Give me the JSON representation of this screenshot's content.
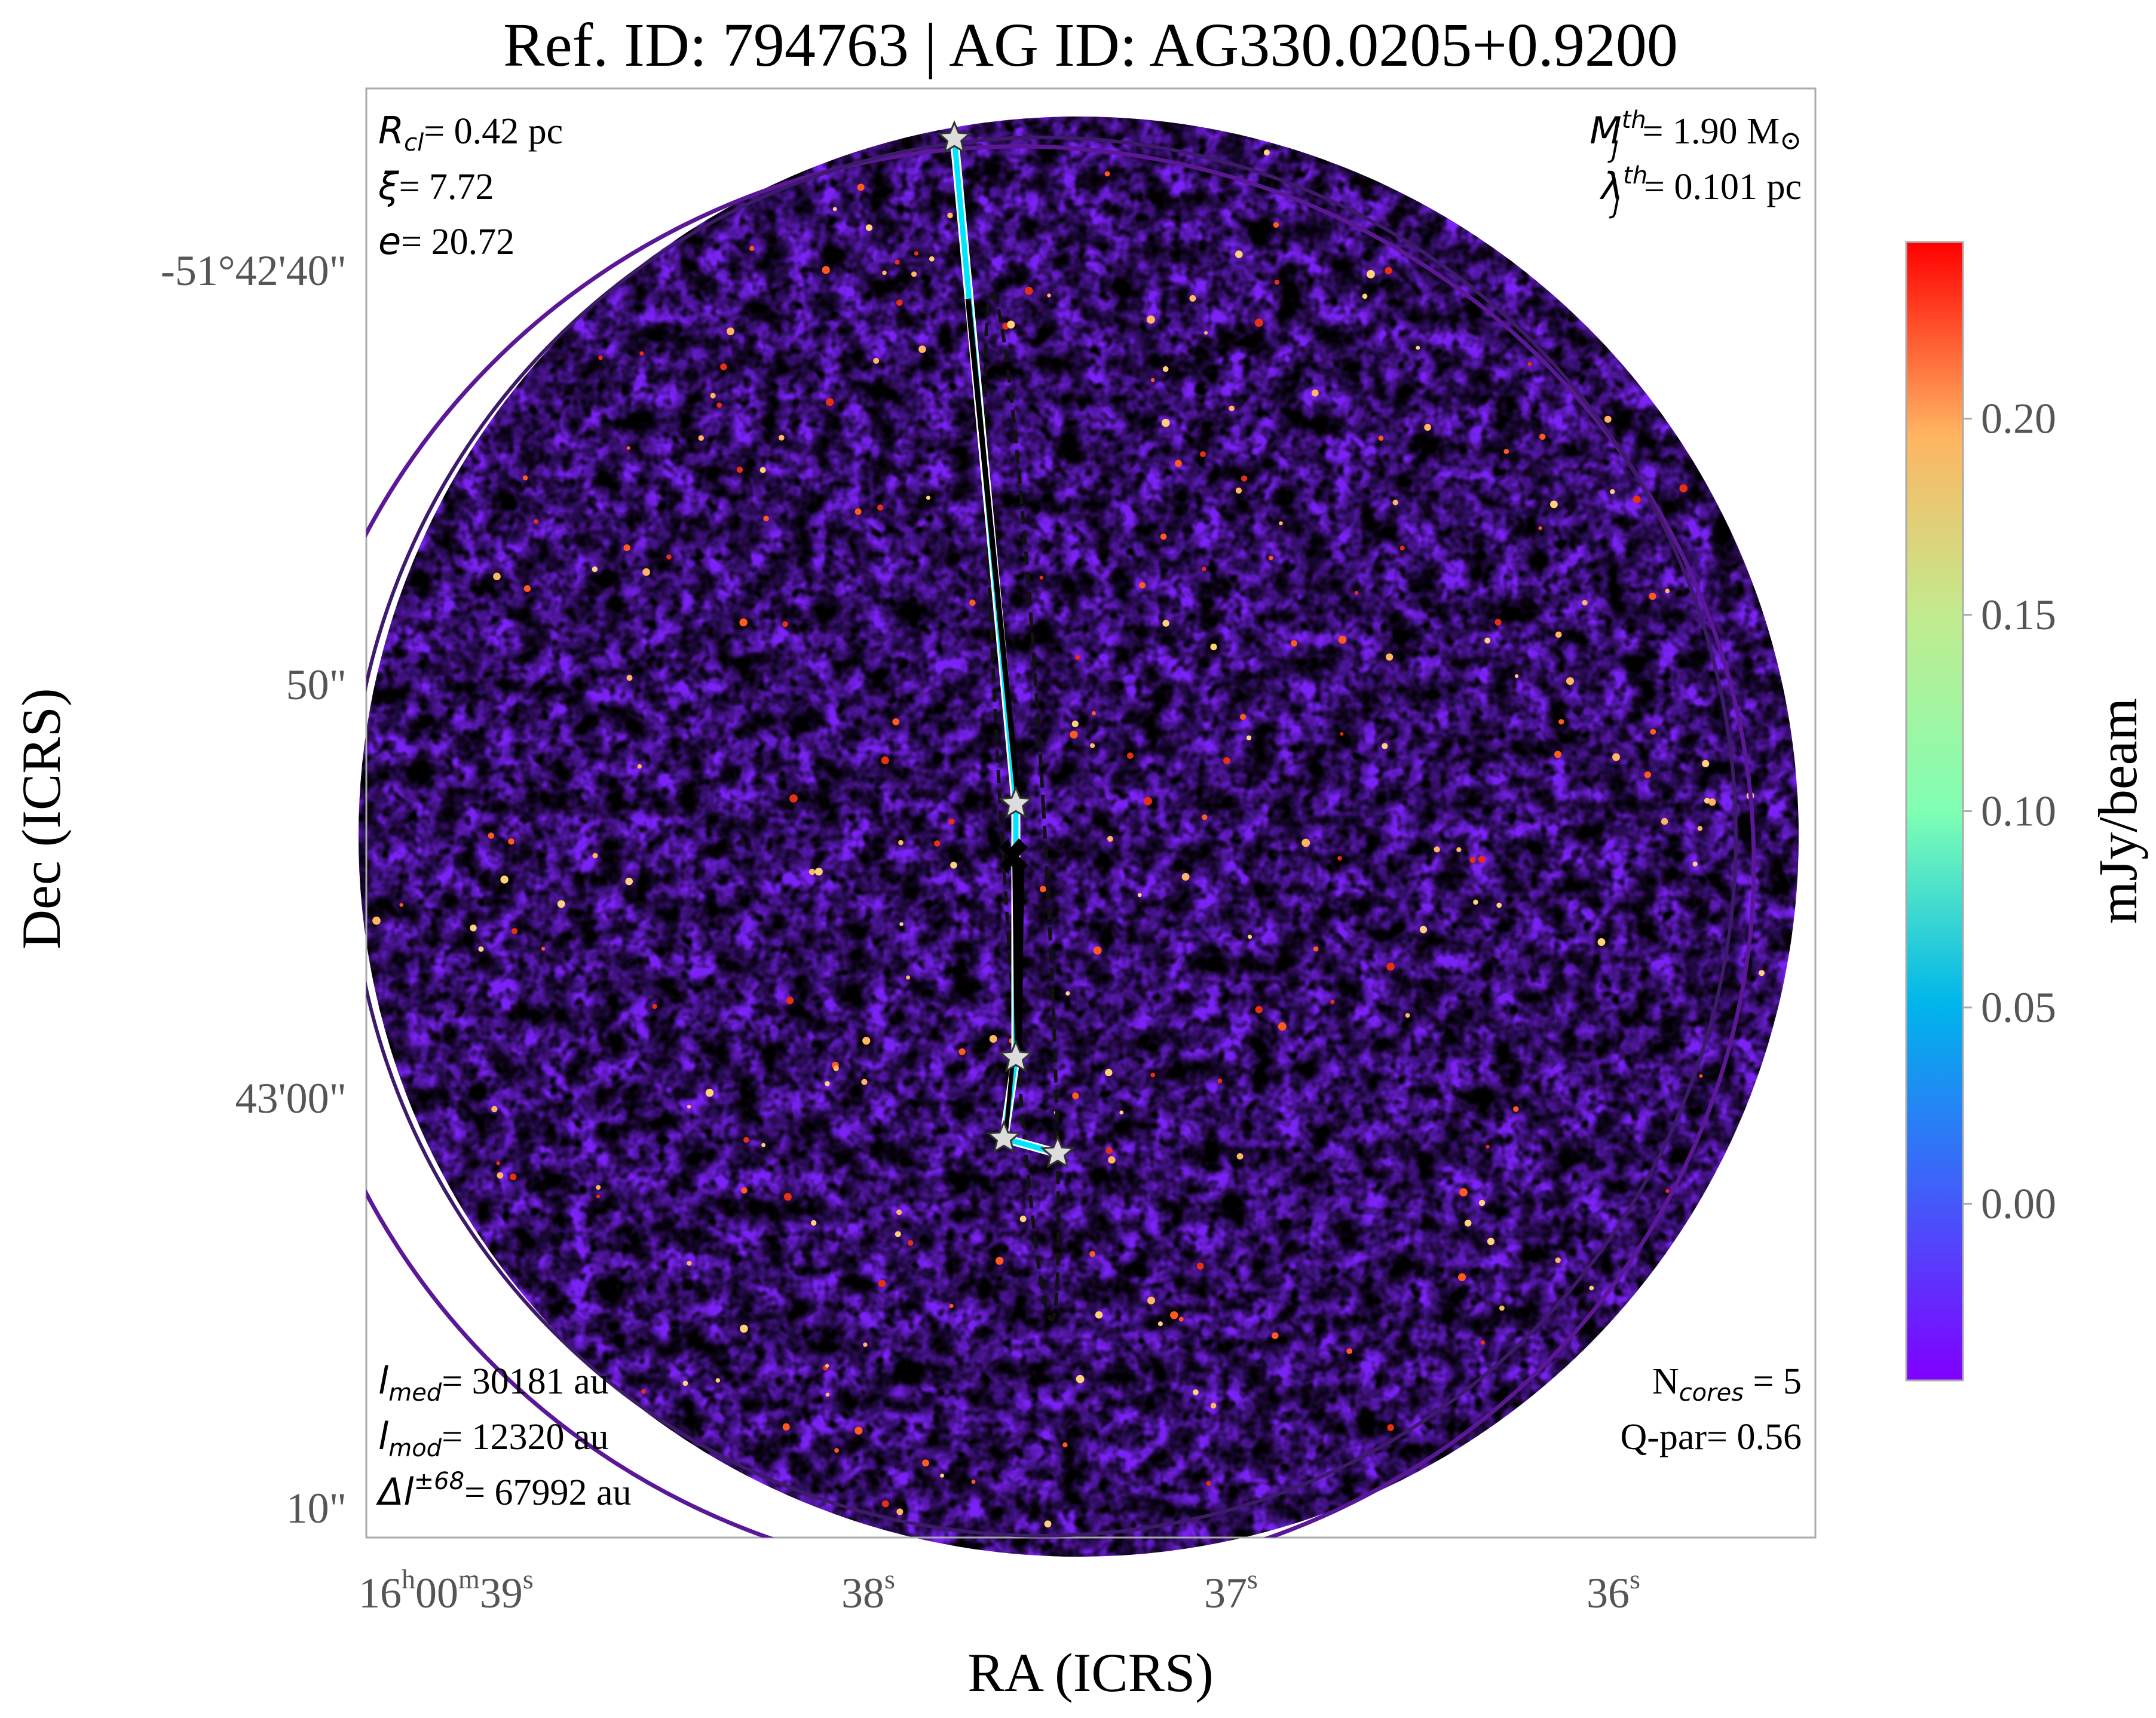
{
  "chart_data": {
    "type": "heatmap",
    "title": "Ref. ID: 794763 | AG ID: AG330.0205+0.9200",
    "xlabel": "RA (ICRS)",
    "ylabel": "Dec (ICRS)",
    "x_ticks": [
      {
        "pre": "16",
        "h": "h",
        "mid": "00",
        "m": "m",
        "sec": "39",
        "s": "s"
      },
      {
        "pre": "",
        "h": "",
        "mid": "",
        "m": "",
        "sec": "38",
        "s": "s"
      },
      {
        "pre": "",
        "h": "",
        "mid": "",
        "m": "",
        "sec": "37",
        "s": "s"
      },
      {
        "pre": "",
        "h": "",
        "mid": "",
        "m": "",
        "sec": "36",
        "s": "s"
      }
    ],
    "y_ticks": [
      "-51°42'40\"",
      "50\"",
      "43'00\"",
      "10\""
    ],
    "colorbar": {
      "label": "mJy/beam",
      "ticks": [
        "0.20",
        "0.15",
        "0.10",
        "0.05",
        "0.00"
      ],
      "tick_values": [
        0.2,
        0.15,
        0.1,
        0.05,
        0.0
      ],
      "range": [
        -0.045,
        0.245
      ],
      "colormap": "rainbow"
    },
    "annotations": {
      "top_left": [
        {
          "sym": "R",
          "sub": "cl",
          "sup": "",
          "val": "= 0.42 pc"
        },
        {
          "sym": "ξ",
          "sub": "",
          "sup": "",
          "val": "= 7.72"
        },
        {
          "sym": "e",
          "sub": "",
          "sup": "",
          "val": "= 20.72"
        }
      ],
      "top_right": [
        {
          "sym": "M",
          "sub": "J",
          "sup": "th",
          "val": "= 1.90 M",
          "unit": "⊙"
        },
        {
          "sym": "λ",
          "sub": "J",
          "sup": "th",
          "val": "= 0.101 pc",
          "unit": ""
        }
      ],
      "bottom_left": [
        {
          "sym": "l",
          "sub": "med",
          "sup": "",
          "val": "= 30181 au"
        },
        {
          "sym": "l",
          "sub": "mod",
          "sup": "",
          "val": "= 12320 au"
        },
        {
          "sym": "Δl",
          "sub": "",
          "sup": "±68",
          "val": "= 67992 au"
        }
      ],
      "bottom_right": [
        "N",
        "cores",
        " = 5",
        "Q-par= 0.56"
      ]
    },
    "n_cores": 5,
    "colors": {
      "mst_edge": "#00e5ff",
      "main_axis": "#000000",
      "cluster_circle": "#5a1896",
      "outer_circle": "#3d1a6a",
      "core_marker": "#dcdcdc"
    }
  }
}
